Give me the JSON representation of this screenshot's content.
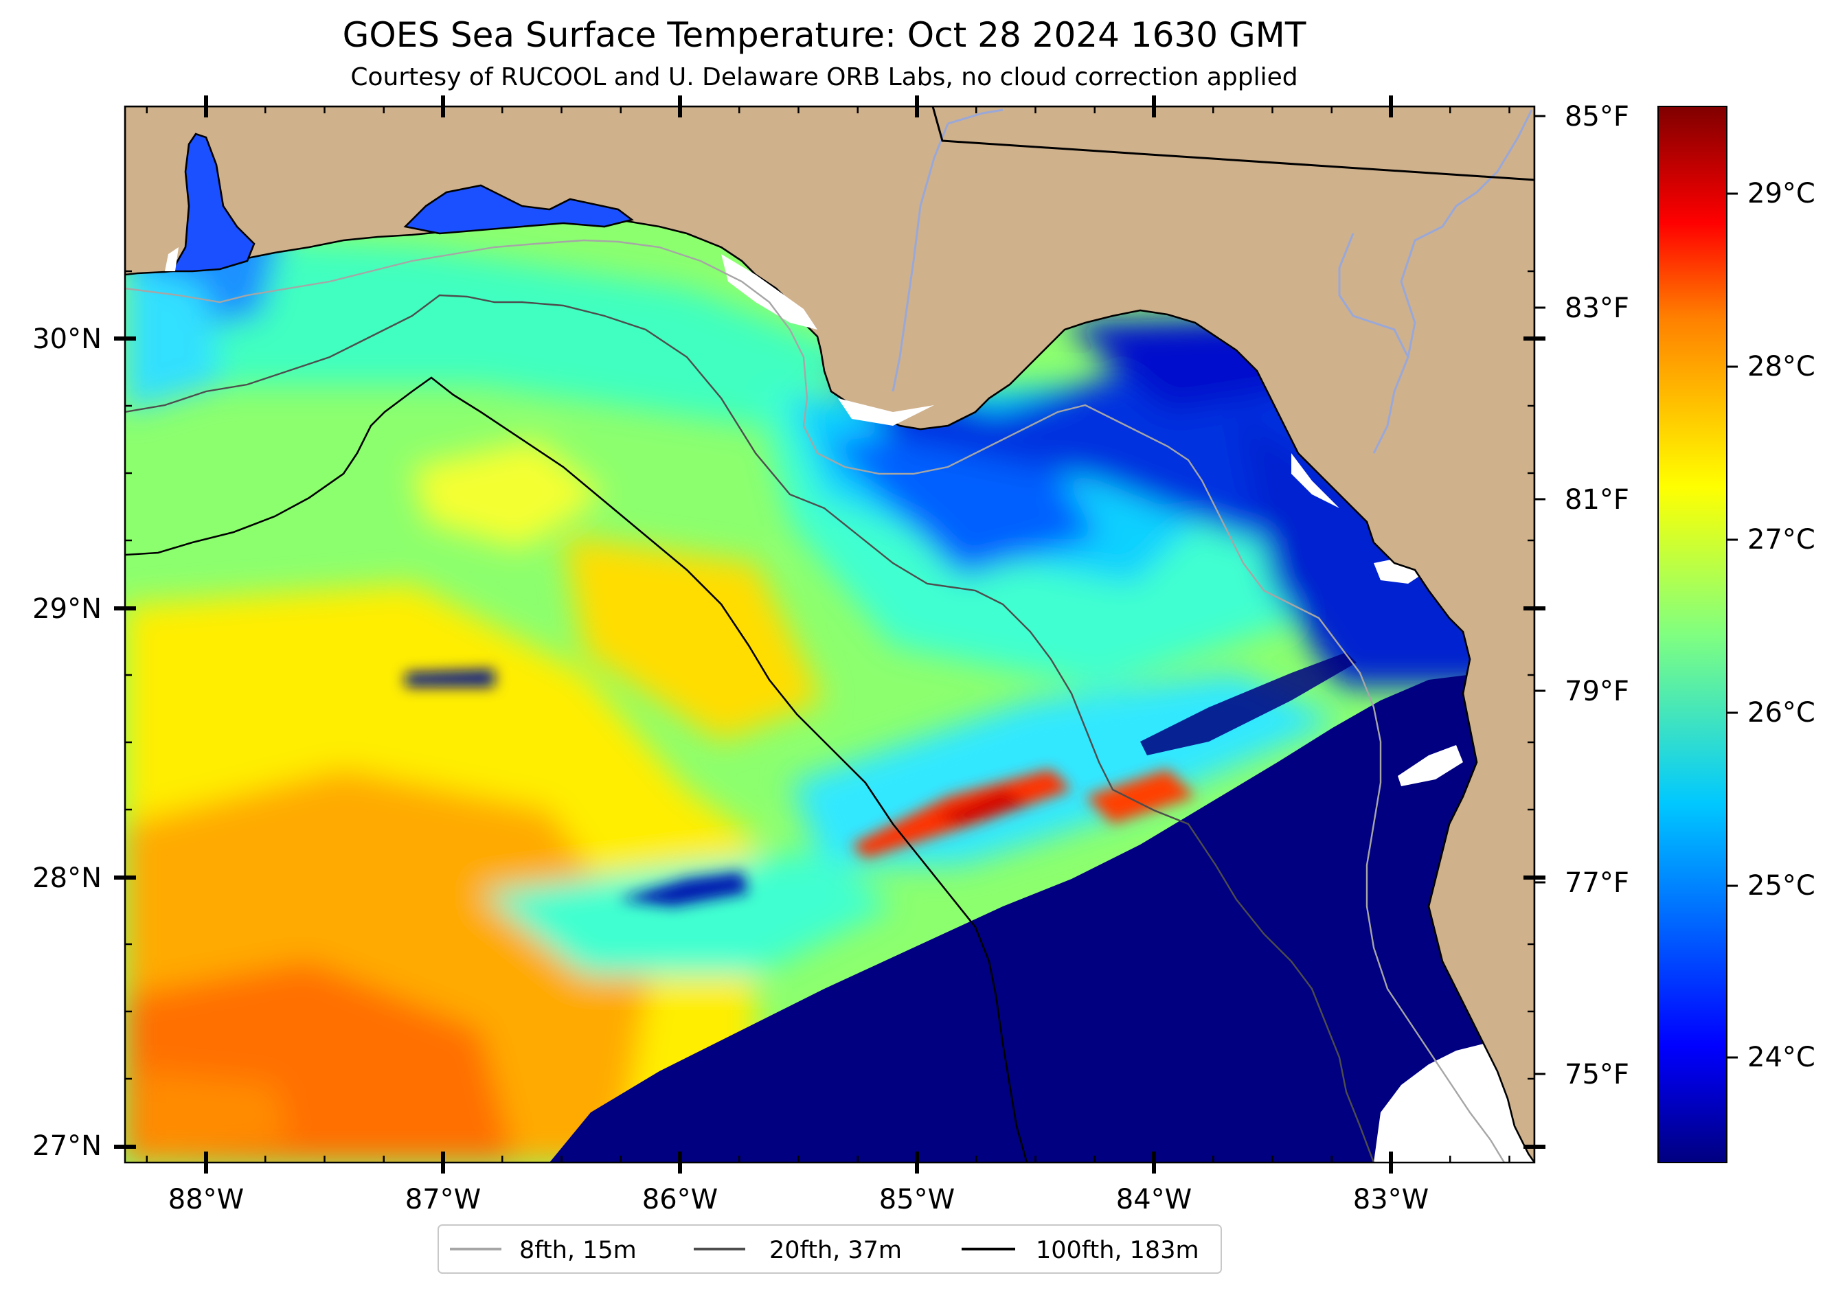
{
  "header": {
    "title": "GOES Sea Surface Temperature: Oct 28 2024 1630 GMT",
    "subtitle": "Courtesy of RUCOOL and U. Delaware ORB Labs, no cloud correction applied"
  },
  "axes": {
    "lon_ticks": [
      "88°W",
      "87°W",
      "86°W",
      "85°W",
      "84°W",
      "83°W"
    ],
    "lat_ticks": [
      "30°N",
      "29°N",
      "28°N",
      "27°N"
    ],
    "lon_range": [
      -88.33,
      -82.38
    ],
    "lat_range": [
      26.93,
      30.85
    ]
  },
  "fahrenheit_scale": {
    "labels": [
      "85°F",
      "83°F",
      "81°F",
      "79°F",
      "77°F",
      "75°F"
    ]
  },
  "colorbar": {
    "unit": "°C",
    "range": [
      23.4,
      29.6
    ],
    "labels": [
      "29°C",
      "28°C",
      "27°C",
      "26°C",
      "25°C",
      "24°C"
    ],
    "colors": [
      "#000080",
      "#0000ff",
      "#0080ff",
      "#00ffff",
      "#80ff80",
      "#ffff00",
      "#ff8000",
      "#ff0000",
      "#800000"
    ]
  },
  "legend": {
    "items": [
      {
        "label": "8fth, 15m",
        "color": "#a6a6a6"
      },
      {
        "label": "20fth, 37m",
        "color": "#4d4d4d"
      },
      {
        "label": "100fth, 183m",
        "color": "#000000"
      }
    ]
  },
  "colors": {
    "land": "#cfb18c",
    "no_data": "#ffffff",
    "river": "#9aa8d8"
  }
}
